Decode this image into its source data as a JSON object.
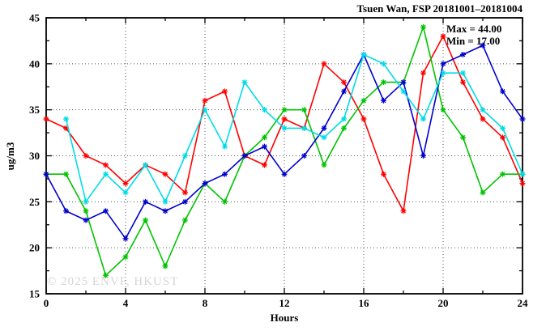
{
  "page": {
    "background": "#ffffff"
  },
  "header": {
    "title": "Tsuen Wan, FSP 20181001–20181004"
  },
  "annotations": {
    "max_label": "Max = 44.00",
    "min_label": "Min = 17.00"
  },
  "watermark": "© 2025 ENVF, HKUST",
  "chart_data": {
    "type": "line",
    "title": "Tsuen Wan, FSP 20181001–20181004",
    "xlabel": "Hours",
    "ylabel": "ug/m3",
    "xlim": [
      0,
      24
    ],
    "ylim": [
      15,
      45
    ],
    "x_major_ticks": [
      0,
      4,
      8,
      12,
      16,
      20,
      24
    ],
    "x_minor_step": 2,
    "y_major_ticks": [
      15,
      20,
      25,
      30,
      35,
      40,
      45
    ],
    "y_minor_step": 2.5,
    "grid": {
      "x": [
        4,
        8,
        12,
        16,
        20
      ],
      "y": [
        20,
        25,
        30,
        35,
        40
      ]
    },
    "legend_position": "none",
    "marker": "asterisk",
    "x": [
      0,
      1,
      2,
      3,
      4,
      5,
      6,
      7,
      8,
      9,
      10,
      11,
      12,
      13,
      14,
      15,
      16,
      17,
      18,
      19,
      20,
      21,
      22,
      23,
      24
    ],
    "series": [
      {
        "name": "series-red",
        "color": "#ff0000",
        "values": [
          34,
          33,
          30,
          29,
          27,
          29,
          28,
          26,
          36,
          37,
          30,
          29,
          34,
          33,
          40,
          38,
          34,
          28,
          24,
          39,
          43,
          38,
          34,
          32,
          27
        ]
      },
      {
        "name": "series-green",
        "color": "#00c400",
        "values": [
          28,
          28,
          24,
          17,
          19,
          23,
          18,
          23,
          27,
          25,
          30,
          32,
          35,
          35,
          29,
          33,
          36,
          38,
          38,
          44,
          35,
          32,
          26,
          28,
          28
        ]
      },
      {
        "name": "series-blue",
        "color": "#0000cd",
        "values": [
          28,
          24,
          23,
          24,
          21,
          25,
          24,
          25,
          27,
          28,
          30,
          31,
          28,
          30,
          33,
          37,
          41,
          36,
          38,
          30,
          40,
          41,
          42,
          37,
          34
        ]
      },
      {
        "name": "series-cyan",
        "color": "#00dce6",
        "values": [
          null,
          34,
          25,
          28,
          26,
          29,
          25,
          30,
          35,
          31,
          38,
          35,
          33,
          33,
          32,
          34,
          41,
          40,
          37,
          34,
          39,
          39,
          35,
          33,
          28
        ]
      }
    ]
  }
}
